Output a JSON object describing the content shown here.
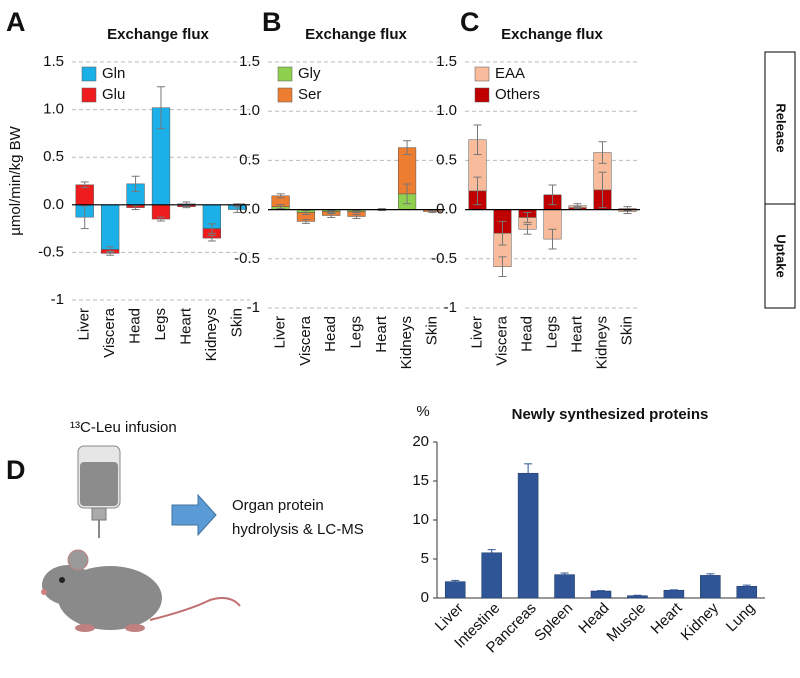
{
  "panel_labels": [
    "A",
    "B",
    "C",
    "D"
  ],
  "side_labels": [
    "Release",
    "Uptake"
  ],
  "schematic": {
    "infusion": "¹³C-Leu infusion",
    "process": [
      "Organ protein",
      "hydrolysis & LC-MS"
    ]
  },
  "chart_data": [
    {
      "type": "stacked_bar",
      "title": "Exchange flux",
      "ylabel": "µmol/min/kg BW",
      "categories": [
        "Liver",
        "Viscera",
        "Head",
        "Legs",
        "Heart",
        "Kidneys",
        "Skin"
      ],
      "series": [
        {
          "name": "Gln",
          "color": "#1cb0e8",
          "values": [
            -0.13,
            -0.47,
            0.22,
            1.02,
            0.01,
            -0.25,
            -0.05
          ],
          "errors": [
            0.12,
            0.03,
            0.08,
            0.22,
            0.02,
            0.05,
            0.03
          ]
        },
        {
          "name": "Glu",
          "color": "#ee1c1c",
          "values": [
            0.21,
            -0.04,
            -0.03,
            -0.15,
            -0.02,
            -0.1,
            0.0
          ],
          "errors": [
            0.03,
            0.02,
            0.02,
            0.02,
            0.01,
            0.03,
            0.01
          ]
        }
      ],
      "ylim": [
        -1,
        1.5
      ],
      "yticks": [
        -1,
        -0.5,
        {
          "value": 0,
          "label": "0.0"
        },
        0.5,
        {
          "value": 1,
          "label": "1.0"
        },
        1.5
      ],
      "grid": true,
      "legend": "upper left"
    },
    {
      "type": "stacked_bar",
      "title": "Exchange flux",
      "categories": [
        "Liver",
        "Viscera",
        "Head",
        "Legs",
        "Heart",
        "Kidneys",
        "Skin"
      ],
      "series": [
        {
          "name": "Gly",
          "color": "#8fd14f",
          "values": [
            0.03,
            -0.03,
            -0.02,
            -0.02,
            0.0,
            0.16,
            0.0
          ],
          "errors": [
            0.02,
            0.02,
            0.01,
            0.01,
            0.0,
            0.1,
            0.0
          ]
        },
        {
          "name": "Ser",
          "color": "#ed7d31",
          "values": [
            0.11,
            -0.09,
            -0.04,
            -0.05,
            0.0,
            0.47,
            -0.02
          ],
          "errors": [
            0.02,
            0.02,
            0.02,
            0.02,
            0.01,
            0.07,
            0.01
          ]
        }
      ],
      "ylim": [
        -1,
        1.5
      ],
      "yticks": [
        -1,
        -0.5,
        {
          "value": 0,
          "label": "0.0"
        },
        0.5,
        {
          "value": 1,
          "label": "1.0"
        },
        1.5
      ],
      "grid": true,
      "legend": "upper left"
    },
    {
      "type": "stacked_bar",
      "title": "Exchange flux",
      "categories": [
        "Liver",
        "Viscera",
        "Head",
        "Legs",
        "Heart",
        "Kidneys",
        "Skin"
      ],
      "series": [
        {
          "name": "Others",
          "color": "#c00000",
          "values": [
            0.19,
            -0.24,
            -0.08,
            0.15,
            0.02,
            0.2,
            0.01
          ],
          "errors": [
            0.14,
            0.12,
            0.05,
            0.1,
            0.01,
            0.18,
            0.02
          ]
        },
        {
          "name": "EAA",
          "color": "#f8bc9c",
          "values": [
            0.52,
            -0.34,
            -0.12,
            -0.3,
            0.02,
            0.38,
            -0.02
          ],
          "errors": [
            0.15,
            0.1,
            0.05,
            0.1,
            0.02,
            0.11,
            0.02
          ]
        }
      ],
      "legend_order": [
        "EAA",
        "Others"
      ],
      "ylim": [
        -1,
        1.5
      ],
      "yticks": [
        -1,
        -0.5,
        {
          "value": 0,
          "label": "0.0"
        },
        0.5,
        {
          "value": 1,
          "label": "1.0"
        },
        1.5
      ],
      "grid": true,
      "legend": "upper left"
    },
    {
      "type": "bar",
      "title": "Newly synthesized proteins",
      "ylabel": "%",
      "categories": [
        "Liver",
        "Intestine",
        "Pancreas",
        "Spleen",
        "Head",
        "Muscle",
        "Heart",
        "Kidney",
        "Lung"
      ],
      "values": [
        2.1,
        5.8,
        16.0,
        3.0,
        0.9,
        0.3,
        1.0,
        2.9,
        1.5
      ],
      "errors": [
        0.15,
        0.4,
        1.2,
        0.2,
        0.05,
        0.05,
        0.05,
        0.2,
        0.15
      ],
      "color": "#2f5597",
      "ylim": [
        0,
        20
      ],
      "yticks": [
        0,
        5,
        10,
        15,
        20
      ],
      "grid": false
    }
  ]
}
